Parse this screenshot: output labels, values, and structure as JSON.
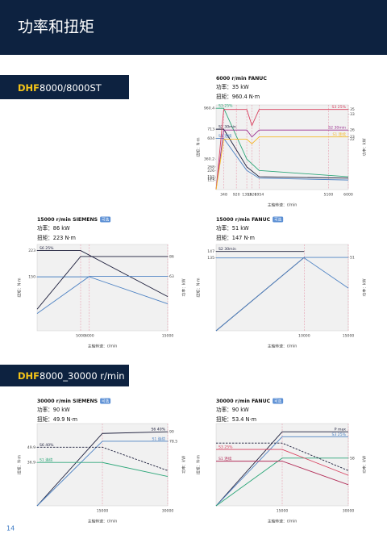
{
  "header": {
    "title": "功率和扭矩"
  },
  "sections": [
    {
      "model": "DHF",
      "name": "8000/8000ST"
    },
    {
      "model": "DHF",
      "name": "8000_30000 r/min"
    }
  ],
  "page_number": "14",
  "charts": [
    {
      "type": "line",
      "title": "6000 r/min FANUC",
      "power": "功率：35 kW",
      "torque": "扭矩：960.4 N·m",
      "y_label": "扭矩：N·m",
      "y2_label": "功率：kW",
      "x_label": "主轴转速：r/min",
      "xlim": [
        0,
        6000
      ],
      "xticks": [
        348,
        920,
        1393,
        1626,
        1954,
        5100,
        6000
      ],
      "ylim": [
        0,
        1000
      ],
      "yticks": [
        960.4,
        713,
        604,
        360.2,
        268,
        226,
        152,
        135,
        113
      ],
      "y2lim": [
        0,
        37
      ],
      "y2ticks": [
        35,
        33,
        26,
        23,
        22
      ],
      "series": [
        {
          "name": "S3 25%",
          "color": "#2ea77a",
          "x": [
            0,
            348,
            1393,
            1954,
            6000
          ],
          "values": [
            960.4,
            960.4,
            360.2,
            226,
            152
          ]
        },
        {
          "name": "S2 30min",
          "color": "#1b1d3a",
          "x": [
            0,
            348,
            1393,
            1954,
            6000
          ],
          "values": [
            713,
            713,
            268,
            152,
            135
          ]
        },
        {
          "name": "S1 连续",
          "color": "#4d82c3",
          "x": [
            0,
            348,
            1393,
            1954,
            6000
          ],
          "values": [
            604,
            604,
            226,
            135,
            113
          ]
        },
        {
          "name": "S3 25%",
          "color": "#d8405e",
          "axis": "y2",
          "x": [
            0,
            348,
            1393,
            1626,
            1954,
            6000
          ],
          "values": [
            0,
            35,
            35,
            28,
            35,
            35
          ]
        },
        {
          "name": "S2 30min",
          "color": "#9a2e8f",
          "axis": "y2",
          "x": [
            0,
            348,
            1393,
            1626,
            1954,
            6000
          ],
          "values": [
            0,
            26,
            26,
            23,
            26,
            26
          ]
        },
        {
          "name": "S1 连续",
          "color": "#f5b92a",
          "axis": "y2",
          "x": [
            0,
            348,
            1393,
            1626,
            1954,
            6000
          ],
          "values": [
            0,
            22,
            22,
            20,
            23,
            23
          ]
        }
      ]
    },
    {
      "type": "line",
      "title": "15000 r/min SIEMENS",
      "badge": "可选",
      "power": "功率：86 kW",
      "torque": "扭矩：223 N·m",
      "y_label": "扭矩：N·m",
      "y2_label": "功率：kW",
      "x_label": "主轴转速：r/min",
      "xlim": [
        0,
        15000
      ],
      "xticks": [
        5000,
        6000,
        15000
      ],
      "ylim": [
        0,
        240
      ],
      "yticks": [
        223,
        150
      ],
      "y2lim": [
        0,
        100
      ],
      "y2ticks": [
        86,
        63
      ],
      "series": [
        {
          "name": "S6 25%",
          "color": "#1b1d3a",
          "x": [
            0,
            5000,
            15000
          ],
          "values": [
            223,
            223,
            95
          ]
        },
        {
          "color": "#4d82c3",
          "x": [
            0,
            6000,
            15000
          ],
          "values": [
            150,
            150,
            75
          ]
        },
        {
          "color": "#1b1d3a",
          "axis": "y2",
          "x": [
            0,
            5000,
            15000
          ],
          "values": [
            25,
            86,
            86
          ]
        },
        {
          "color": "#4d82c3",
          "axis": "y2",
          "x": [
            0,
            6000,
            15000
          ],
          "values": [
            20,
            63,
            63
          ]
        }
      ]
    },
    {
      "type": "line",
      "title": "15000 r/min FANUC",
      "badge": "可选",
      "power": "功率：51 kW",
      "torque": "扭矩：147 N·m",
      "y_label": "扭矩：N·m",
      "y2_label": "功率：kW",
      "x_label": "主轴转速：r/min",
      "xlim": [
        0,
        15000
      ],
      "xticks": [
        10000,
        15000
      ],
      "ylim": [
        0,
        160
      ],
      "yticks": [
        147,
        135
      ],
      "y2lim": [
        0,
        60
      ],
      "y2ticks": [
        51
      ],
      "series": [
        {
          "name": "S2 30min",
          "color": "#1b1d3a",
          "x": [
            0,
            10000
          ],
          "values": [
            147,
            147
          ]
        },
        {
          "color": "#4d82c3",
          "x": [
            0,
            10000,
            15000
          ],
          "values": [
            135,
            135,
            79
          ]
        },
        {
          "color": "#1b1d3a",
          "axis": "y2",
          "x": [
            0,
            10000
          ],
          "values": [
            0,
            51
          ]
        },
        {
          "color": "#4d82c3",
          "axis": "y2",
          "x": [
            0,
            10000,
            15000
          ],
          "values": [
            0,
            51,
            51
          ]
        }
      ]
    },
    {
      "type": "line",
      "title": "30000 r/min SIEMENS",
      "badge": "可选",
      "power": "功率：90 kW",
      "torque": "扭矩：49.9 N·m",
      "y_label": "扭矩：N·m",
      "y2_label": "功率：kW",
      "x_label": "主轴转速：r/min",
      "xlim": [
        0,
        30000
      ],
      "xticks": [
        15000,
        30000
      ],
      "ylim": [
        0,
        70
      ],
      "yticks": [
        49.9,
        36.9
      ],
      "y2lim": [
        0,
        100
      ],
      "y2ticks": [
        90,
        78.5
      ],
      "series": [
        {
          "name": "S6 40%",
          "color": "#1b1d3a",
          "axis": "y2",
          "x": [
            0,
            15000,
            30000
          ],
          "values": [
            0,
            88,
            90
          ]
        },
        {
          "name": "S1 连续",
          "color": "#4d82c3",
          "axis": "y2",
          "x": [
            0,
            15000,
            30000
          ],
          "values": [
            0,
            78.5,
            78.5
          ]
        },
        {
          "name": "S6 40%",
          "color": "#1b1d3a",
          "dash": true,
          "x": [
            0,
            15000,
            30000
          ],
          "values": [
            49.9,
            49.9,
            30
          ]
        },
        {
          "name": "S1 连续",
          "color": "#2ea77a",
          "x": [
            0,
            15000,
            30000
          ],
          "values": [
            36.9,
            36.9,
            25
          ]
        }
      ]
    },
    {
      "type": "line",
      "title": "30000 r/min FANUC",
      "badge": "可选",
      "power": "功率：90 kW",
      "torque": "扭矩：53.4 N·m",
      "y_label": "扭矩：N·m",
      "y2_label": "功率：kW",
      "x_label": "主轴转速：r/min",
      "xlim": [
        0,
        30000
      ],
      "xticks": [
        15000,
        30000
      ],
      "ylim": [
        0,
        70
      ],
      "y2lim": [
        0,
        100
      ],
      "y2ticks": [
        58
      ],
      "series": [
        {
          "name": "P max",
          "color": "#1b1d3a",
          "axis": "y2",
          "x": [
            0,
            15000,
            30000
          ],
          "values": [
            0,
            90,
            90
          ]
        },
        {
          "name": "S3 25%",
          "color": "#4d82c3",
          "axis": "y2",
          "x": [
            0,
            15000,
            30000
          ],
          "values": [
            0,
            84,
            84
          ]
        },
        {
          "color": "#2ea77a",
          "axis": "y2",
          "x": [
            0,
            15000,
            30000
          ],
          "values": [
            0,
            58,
            58
          ]
        },
        {
          "color": "#1b1d3a",
          "dash": true,
          "x": [
            0,
            15000,
            30000
          ],
          "values": [
            53.4,
            53.4,
            30
          ]
        },
        {
          "name": "S3 25%",
          "color": "#d8405e",
          "x": [
            0,
            15000,
            30000
          ],
          "values": [
            48,
            48,
            26
          ]
        },
        {
          "name": "S1 连续",
          "color": "#b3305a",
          "x": [
            0,
            15000,
            30000
          ],
          "values": [
            38,
            38,
            18
          ]
        }
      ]
    }
  ]
}
